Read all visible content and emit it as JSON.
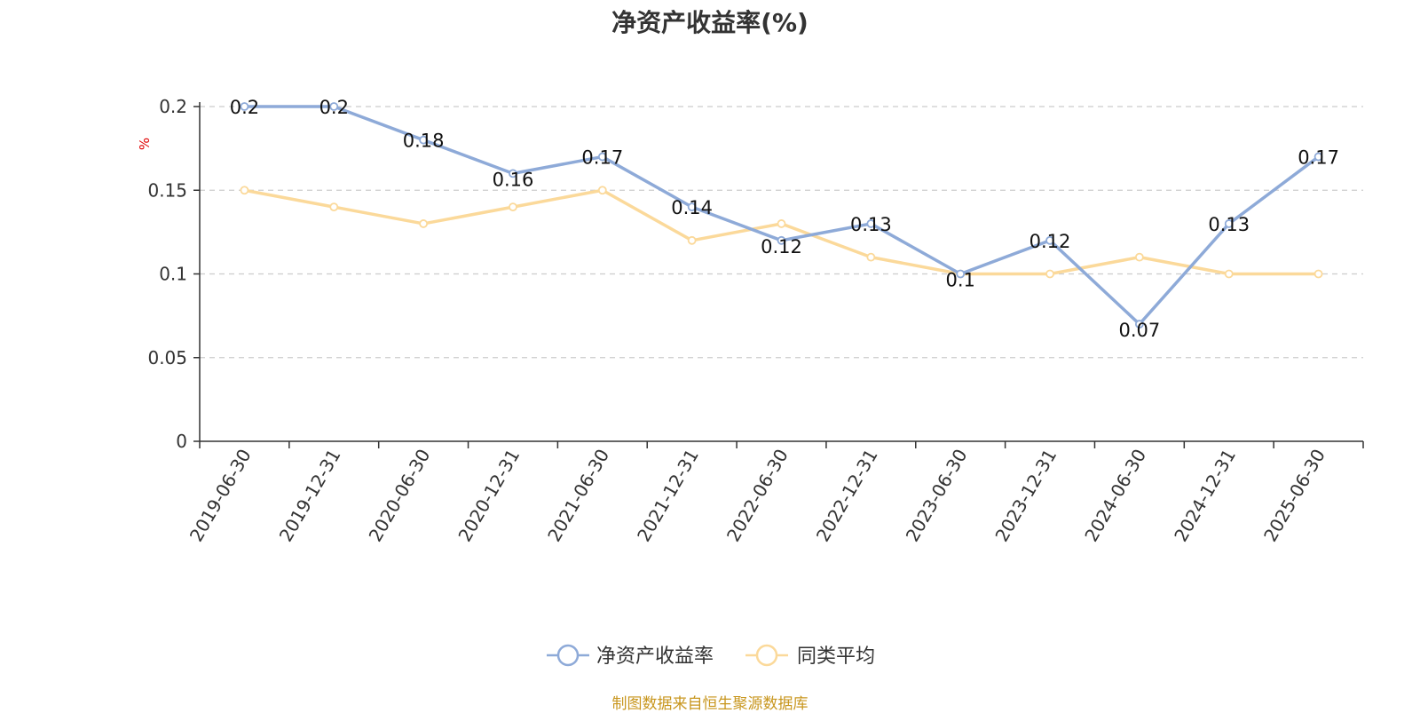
{
  "chart_data": {
    "type": "line",
    "title": "净资产收益率(%)",
    "ylabel": "%",
    "ylim": [
      0,
      0.2
    ],
    "yticks": [
      "0",
      "0.05",
      "0.1",
      "0.15",
      "0.2"
    ],
    "ytick_values": [
      0,
      0.05,
      0.1,
      0.15,
      0.2
    ],
    "grid": true,
    "legend_position": "bottom-center",
    "categories": [
      "2019-06-30",
      "2019-12-31",
      "2020-06-30",
      "2020-12-31",
      "2021-06-30",
      "2021-12-31",
      "2022-06-30",
      "2022-12-31",
      "2023-06-30",
      "2023-12-31",
      "2024-06-30",
      "2024-12-31",
      "2025-06-30"
    ],
    "series": [
      {
        "name": "净资产收益率",
        "color": "#8eaad8",
        "values": [
          0.2,
          0.2,
          0.18,
          0.16,
          0.17,
          0.14,
          0.12,
          0.13,
          0.1,
          0.12,
          0.07,
          0.13,
          0.17
        ],
        "labels": [
          "0.2",
          "0.2",
          "0.18",
          "0.16",
          "0.17",
          "0.14",
          "0.12",
          "0.13",
          "0.1",
          "0.12",
          "0.07",
          "0.13",
          "0.17"
        ]
      },
      {
        "name": "同类平均",
        "color": "#fbd99a",
        "values": [
          0.15,
          0.14,
          0.13,
          0.14,
          0.15,
          0.12,
          0.13,
          0.11,
          0.1,
          0.1,
          0.11,
          0.1,
          0.1
        ]
      }
    ]
  },
  "footer": {
    "source": "制图数据来自恒生聚源数据库",
    "source_color": "#c8961e"
  },
  "colors": {
    "ylabel": "#e00000",
    "axis": "#333333",
    "grid": "#cccccc"
  }
}
